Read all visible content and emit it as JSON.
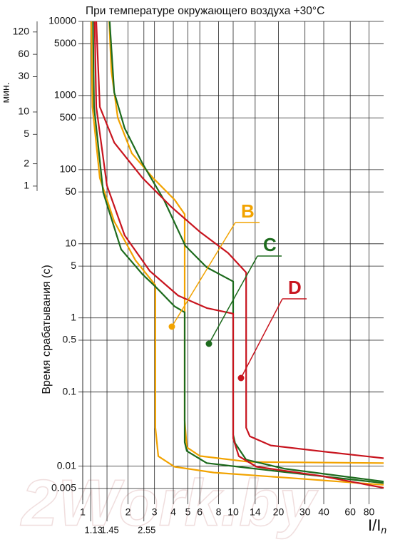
{
  "chart_data": {
    "type": "line",
    "title": "При температуре окружающего воздуха +30°C",
    "ylabel": "Время срабатывания (с)",
    "y2label": "мин.",
    "xlabel": "I/I",
    "xlabel_sub": "n",
    "watermark": "2Work.by",
    "log_x": true,
    "log_y": true,
    "grid": true,
    "xlim": [
      1,
      100
    ],
    "ylim": [
      0.0035,
      10000
    ],
    "y2lim": [
      5.83e-05,
      166.7
    ],
    "xticks": [
      1,
      2,
      3,
      4,
      5,
      6,
      8,
      10,
      14,
      20,
      30,
      40,
      60,
      80
    ],
    "xticks_sub": [
      1.13,
      1.45,
      2.55
    ],
    "yticks": [
      10000,
      5000,
      1000,
      500,
      100,
      50,
      10,
      5,
      1,
      0.5,
      0.1,
      0.01,
      0.005
    ],
    "y2ticks": [
      120,
      60,
      30,
      10,
      5,
      2,
      1
    ],
    "series": [
      {
        "name": "B",
        "color": "#f2a300",
        "curves": [
          {
            "x": [
              1.14,
              1.16,
              1.3,
              1.62,
              2.24,
              3.04,
              3.04,
              3.18,
              4.08,
              7.44,
              22.2,
              100
            ],
            "values": [
              10000,
              702,
              77,
              20,
              6,
              2.77,
              0.033,
              0.0136,
              0.0098,
              0.0082,
              0.007,
              0.0056
            ]
          },
          {
            "x": [
              1.5,
              1.55,
              1.71,
              2.12,
              2.94,
              4.09,
              4.76,
              4.76,
              4.92,
              6.0,
              12.8,
              100
            ],
            "values": [
              10000,
              2130,
              500,
              166,
              77,
              39,
              25,
              0.041,
              0.018,
              0.0137,
              0.0114,
              0.011
            ]
          }
        ]
      },
      {
        "name": "C",
        "color": "#1d6b1d",
        "curves": [
          {
            "x": [
              1.17,
              1.19,
              1.37,
              1.8,
              2.5,
              3.04,
              4.08,
              4.76,
              4.76,
              4.92,
              6.67,
              12.9,
              100
            ],
            "values": [
              10000,
              702,
              49,
              8.4,
              3.86,
              2.65,
              1.43,
              1.19,
              0.021,
              0.016,
              0.011,
              0.0094,
              0.0059
            ]
          },
          {
            "x": [
              1.51,
              1.62,
              1.9,
              2.5,
              3.47,
              4.81,
              6.67,
              10,
              10,
              10.3,
              12.2,
              22.2,
              100
            ],
            "values": [
              10000,
              1100,
              362,
              120,
              39,
              9.4,
              4.8,
              3.1,
              0.0265,
              0.0204,
              0.0122,
              0.0092,
              0.0062
            ]
          }
        ]
      },
      {
        "name": "D",
        "color": "#c8141e",
        "curves": [
          {
            "x": [
              1.2,
              1.23,
              1.45,
              1.9,
              2.79,
              4.31,
              6.67,
              10,
              10,
              10.9,
              14.3,
              38,
              100
            ],
            "values": [
              10000,
              702,
              61,
              13,
              4.3,
              2.0,
              1.36,
              1.14,
              0.0237,
              0.0136,
              0.0098,
              0.0074,
              0.0051
            ]
          },
          {
            "x": [
              1.23,
              1.3,
              1.62,
              2.5,
              3.87,
              5.98,
              9.25,
              12.2,
              12.2,
              12.9,
              17.8,
              38,
              100
            ],
            "values": [
              10000,
              702,
              232,
              77,
              31.6,
              14.6,
              7.5,
              4.1,
              0.033,
              0.0253,
              0.019,
              0.0159,
              0.0128
            ]
          }
        ]
      }
    ]
  }
}
